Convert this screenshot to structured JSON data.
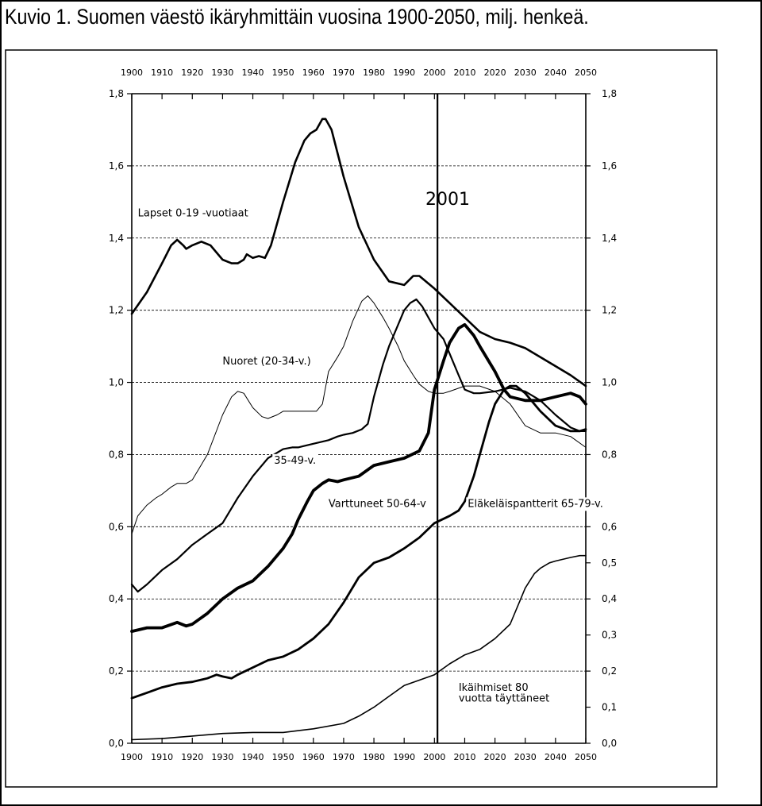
{
  "title": "Kuvio 1. Suomen väestö ikäryhmittäin vuosina 1900-2050, milj. henkeä.",
  "marker_label": "2001",
  "chart_data": {
    "type": "line",
    "xlim": [
      1900,
      2050
    ],
    "ylim": [
      0,
      1.8
    ],
    "x_ticks": [
      "1900",
      "1910",
      "1920",
      "1930",
      "1940",
      "1950",
      "1960",
      "1970",
      "1980",
      "1990",
      "2000",
      "2010",
      "2020",
      "2030",
      "2040",
      "2050"
    ],
    "y_ticks_left": [
      "0,0",
      "0,2",
      "0,4",
      "0,6",
      "0,8",
      "1,0",
      "1,2",
      "1,4",
      "1,6",
      "1,8"
    ],
    "y_ticks_right": [
      "0,0",
      "0,1",
      "0,2",
      "0,3",
      "0,4",
      "0,5",
      "0,6",
      "0,8",
      "1,0",
      "1,2",
      "1,4",
      "1,6",
      "1,8"
    ],
    "y_ticks_right_values": [
      0,
      0.1,
      0.2,
      0.3,
      0.4,
      0.5,
      0.6,
      0.8,
      1.0,
      1.2,
      1.4,
      1.6,
      1.8
    ],
    "grid": "horizontal-dashed",
    "vertical_marker": 2001,
    "series": [
      {
        "name": "Lapset 0-19 -vuotiaat",
        "stroke_width": 2.6,
        "x": [
          1900,
          1905,
          1910,
          1913,
          1915,
          1917,
          1918,
          1920,
          1923,
          1926,
          1930,
          1933,
          1935,
          1937,
          1938,
          1940,
          1942,
          1944,
          1946,
          1950,
          1954,
          1957,
          1959,
          1961,
          1963,
          1964,
          1966,
          1970,
          1975,
          1980,
          1985,
          1990,
          1993,
          1995,
          2000,
          2005,
          2010,
          2015,
          2020,
          2025,
          2030,
          2035,
          2040,
          2045,
          2050
        ],
        "y": [
          1.19,
          1.25,
          1.33,
          1.38,
          1.395,
          1.38,
          1.37,
          1.38,
          1.39,
          1.38,
          1.34,
          1.33,
          1.33,
          1.34,
          1.355,
          1.345,
          1.35,
          1.345,
          1.38,
          1.5,
          1.61,
          1.67,
          1.69,
          1.7,
          1.73,
          1.73,
          1.7,
          1.57,
          1.43,
          1.34,
          1.28,
          1.27,
          1.295,
          1.295,
          1.26,
          1.22,
          1.18,
          1.14,
          1.12,
          1.11,
          1.095,
          1.07,
          1.045,
          1.02,
          0.99
        ]
      },
      {
        "name": "Nuoret (20-34-v.)",
        "stroke_width": 1.0,
        "x": [
          1900,
          1902,
          1905,
          1908,
          1910,
          1913,
          1915,
          1918,
          1920,
          1925,
          1930,
          1933,
          1935,
          1937,
          1940,
          1943,
          1945,
          1948,
          1950,
          1955,
          1958,
          1961,
          1963,
          1965,
          1968,
          1970,
          1973,
          1976,
          1978,
          1980,
          1983,
          1985,
          1988,
          1990,
          1993,
          1995,
          1998,
          2000,
          2003,
          2005,
          2010,
          2015,
          2020,
          2025,
          2030,
          2035,
          2040,
          2045,
          2050
        ],
        "y": [
          0.58,
          0.63,
          0.66,
          0.68,
          0.69,
          0.71,
          0.72,
          0.72,
          0.73,
          0.8,
          0.91,
          0.96,
          0.975,
          0.97,
          0.93,
          0.905,
          0.9,
          0.91,
          0.92,
          0.92,
          0.92,
          0.92,
          0.94,
          1.03,
          1.07,
          1.1,
          1.17,
          1.225,
          1.24,
          1.22,
          1.18,
          1.15,
          1.1,
          1.06,
          1.02,
          0.995,
          0.975,
          0.97,
          0.97,
          0.975,
          0.99,
          0.99,
          0.975,
          0.94,
          0.88,
          0.86,
          0.86,
          0.85,
          0.82
        ]
      },
      {
        "name": "35-49-v.",
        "stroke_width": 2.2,
        "x": [
          1900,
          1902,
          1905,
          1910,
          1915,
          1920,
          1925,
          1930,
          1935,
          1940,
          1945,
          1950,
          1953,
          1955,
          1960,
          1965,
          1968,
          1970,
          1973,
          1976,
          1978,
          1980,
          1983,
          1985,
          1988,
          1990,
          1992,
          1994,
          1996,
          1998,
          2000,
          2003,
          2005,
          2008,
          2010,
          2013,
          2015,
          2020,
          2025,
          2030,
          2035,
          2040,
          2045,
          2048,
          2050
        ],
        "y": [
          0.44,
          0.42,
          0.44,
          0.48,
          0.51,
          0.55,
          0.58,
          0.61,
          0.68,
          0.74,
          0.79,
          0.815,
          0.82,
          0.82,
          0.83,
          0.84,
          0.85,
          0.855,
          0.86,
          0.87,
          0.885,
          0.96,
          1.05,
          1.1,
          1.16,
          1.2,
          1.22,
          1.23,
          1.21,
          1.18,
          1.15,
          1.12,
          1.08,
          1.02,
          0.98,
          0.97,
          0.97,
          0.975,
          0.985,
          0.975,
          0.95,
          0.91,
          0.875,
          0.865,
          0.865
        ]
      },
      {
        "name": "Varttuneet 50-64-v",
        "stroke_width": 3.8,
        "x": [
          1900,
          1905,
          1910,
          1915,
          1918,
          1920,
          1925,
          1930,
          1935,
          1940,
          1945,
          1950,
          1953,
          1955,
          1958,
          1960,
          1963,
          1965,
          1968,
          1970,
          1975,
          1980,
          1985,
          1990,
          1995,
          1998,
          2000,
          2003,
          2005,
          2008,
          2010,
          2013,
          2015,
          2020,
          2023,
          2025,
          2030,
          2035,
          2040,
          2045,
          2048,
          2050
        ],
        "y": [
          0.31,
          0.32,
          0.32,
          0.335,
          0.325,
          0.33,
          0.36,
          0.4,
          0.43,
          0.45,
          0.49,
          0.54,
          0.58,
          0.62,
          0.67,
          0.7,
          0.72,
          0.73,
          0.725,
          0.73,
          0.74,
          0.77,
          0.78,
          0.79,
          0.81,
          0.86,
          0.98,
          1.06,
          1.11,
          1.15,
          1.16,
          1.13,
          1.1,
          1.03,
          0.98,
          0.96,
          0.95,
          0.95,
          0.96,
          0.97,
          0.96,
          0.94
        ]
      },
      {
        "name": "Eläkeläispantterit 65-79-v.",
        "stroke_width": 2.8,
        "x": [
          1900,
          1905,
          1910,
          1915,
          1920,
          1925,
          1928,
          1930,
          1933,
          1935,
          1940,
          1945,
          1950,
          1955,
          1960,
          1965,
          1970,
          1975,
          1980,
          1985,
          1990,
          1995,
          2000,
          2005,
          2008,
          2010,
          2013,
          2015,
          2018,
          2020,
          2023,
          2025,
          2027,
          2030,
          2035,
          2040,
          2045,
          2048,
          2050
        ],
        "y": [
          0.125,
          0.14,
          0.155,
          0.165,
          0.17,
          0.18,
          0.19,
          0.185,
          0.18,
          0.19,
          0.21,
          0.23,
          0.24,
          0.26,
          0.29,
          0.33,
          0.39,
          0.46,
          0.5,
          0.515,
          0.54,
          0.57,
          0.61,
          0.63,
          0.645,
          0.67,
          0.74,
          0.8,
          0.89,
          0.94,
          0.98,
          0.99,
          0.99,
          0.97,
          0.92,
          0.88,
          0.865,
          0.865,
          0.87
        ]
      },
      {
        "name": "Ikäihmiset 80 vuotta täyttäneet",
        "stroke_width": 1.6,
        "x": [
          1900,
          1910,
          1920,
          1930,
          1940,
          1950,
          1960,
          1970,
          1975,
          1980,
          1985,
          1990,
          1995,
          2000,
          2005,
          2010,
          2015,
          2020,
          2025,
          2028,
          2030,
          2033,
          2035,
          2038,
          2040,
          2045,
          2048,
          2050
        ],
        "y": [
          0.01,
          0.013,
          0.02,
          0.027,
          0.03,
          0.03,
          0.04,
          0.055,
          0.075,
          0.1,
          0.13,
          0.16,
          0.175,
          0.19,
          0.22,
          0.245,
          0.26,
          0.29,
          0.33,
          0.39,
          0.43,
          0.47,
          0.485,
          0.5,
          0.505,
          0.515,
          0.52,
          0.52
        ]
      }
    ],
    "labels": [
      {
        "id": "lapset",
        "text": "Lapset 0-19 -vuotiaat",
        "x": 1902,
        "y": 1.46
      },
      {
        "id": "nuoret",
        "text": "Nuoret (20-34-v.)",
        "x": 1930,
        "y": 1.05
      },
      {
        "id": "a35",
        "text": "35-49-v.",
        "x": 1947,
        "y": 0.775
      },
      {
        "id": "varttuneet",
        "text": "Varttuneet 50-64-v",
        "x": 1965,
        "y": 0.655
      },
      {
        "id": "elake",
        "text": "Eläkeläispantterit 65-79-v.",
        "x": 2011,
        "y": 0.655
      },
      {
        "id": "ika1",
        "text": "Ikäihmiset 80",
        "x": 2008,
        "y": 0.145
      },
      {
        "id": "ika2",
        "text": "vuotta täyttäneet",
        "x": 2008,
        "y": 0.115
      }
    ]
  }
}
